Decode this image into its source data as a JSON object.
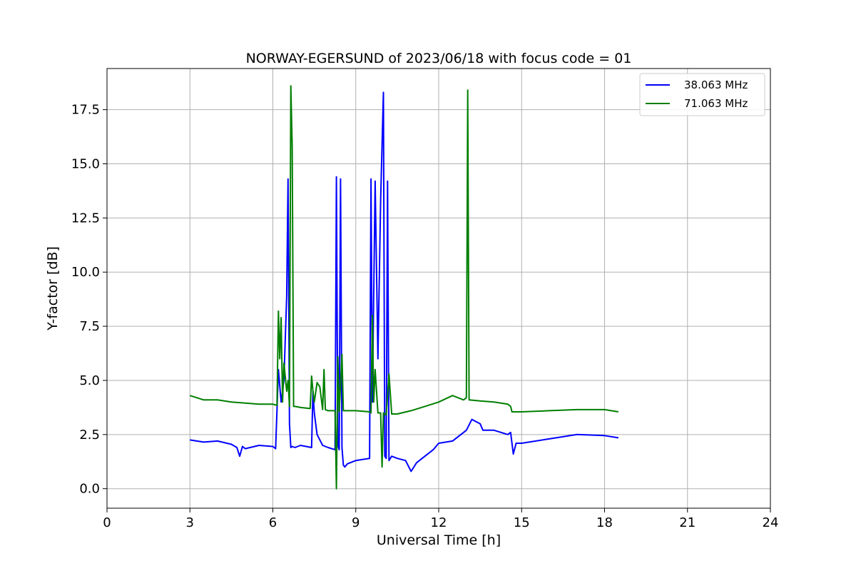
{
  "chart_data": {
    "type": "line",
    "title": "NORWAY-EGERSUND of 2023/06/18 with focus code = 01",
    "xlabel": "Universal Time [h]",
    "ylabel": "Y-factor [dB]",
    "xlim": [
      0,
      24
    ],
    "ylim": [
      -0.9,
      19.4
    ],
    "xticks": [
      0,
      3,
      6,
      9,
      12,
      15,
      18,
      21,
      24
    ],
    "xtick_labels": [
      "0",
      "3",
      "6",
      "9",
      "12",
      "15",
      "18",
      "21",
      "24"
    ],
    "yticks": [
      0,
      2.5,
      5,
      7.5,
      10,
      12.5,
      15,
      17.5
    ],
    "ytick_labels": [
      "0.0",
      "2.5",
      "5.0",
      "7.5",
      "10.0",
      "12.5",
      "15.0",
      "17.5"
    ],
    "grid": true,
    "legend": "top-right",
    "series": [
      {
        "name": "38.063 MHz",
        "color": "#0000ff",
        "x": [
          3.0,
          3.5,
          4.0,
          4.5,
          4.7,
          4.8,
          4.9,
          5.0,
          5.5,
          6.0,
          6.1,
          6.2,
          6.3,
          6.4,
          6.5,
          6.55,
          6.6,
          6.65,
          6.7,
          6.8,
          7.0,
          7.4,
          7.45,
          7.5,
          7.6,
          7.8,
          8.0,
          8.25,
          8.3,
          8.35,
          8.4,
          8.45,
          8.5,
          8.55,
          8.6,
          8.7,
          9.0,
          9.5,
          9.55,
          9.6,
          9.7,
          9.8,
          9.9,
          10.0,
          10.05,
          10.1,
          10.15,
          10.2,
          10.25,
          10.3,
          10.5,
          10.8,
          11.0,
          11.2,
          11.5,
          11.8,
          12.0,
          12.5,
          13.0,
          13.2,
          13.5,
          13.6,
          14.0,
          14.5,
          14.6,
          14.7,
          14.8,
          15.0,
          16.0,
          17.0,
          18.0,
          18.5
        ],
        "y": [
          2.25,
          2.15,
          2.2,
          2.05,
          1.9,
          1.5,
          1.95,
          1.85,
          2.0,
          1.95,
          1.85,
          5.5,
          4.0,
          5.0,
          8.9,
          14.3,
          3.0,
          1.9,
          1.95,
          1.9,
          2.0,
          1.9,
          4.5,
          3.5,
          2.5,
          2.0,
          1.9,
          1.8,
          14.4,
          2.0,
          1.8,
          14.3,
          1.9,
          1.1,
          1.0,
          1.15,
          1.3,
          1.4,
          14.3,
          4.0,
          14.2,
          6.0,
          13.3,
          18.3,
          1.5,
          1.4,
          14.2,
          1.3,
          1.4,
          1.5,
          1.4,
          1.3,
          0.8,
          1.2,
          1.5,
          1.8,
          2.1,
          2.2,
          2.7,
          3.2,
          3.0,
          2.7,
          2.7,
          2.5,
          2.6,
          1.6,
          2.1,
          2.1,
          2.3,
          2.5,
          2.45,
          2.35
        ]
      },
      {
        "name": "71.063 MHz",
        "color": "#007f00",
        "x": [
          3.0,
          3.5,
          4.0,
          4.5,
          5.0,
          5.5,
          6.0,
          6.15,
          6.2,
          6.25,
          6.3,
          6.35,
          6.4,
          6.5,
          6.55,
          6.6,
          6.65,
          6.7,
          6.75,
          6.8,
          7.0,
          7.35,
          7.4,
          7.45,
          7.5,
          7.6,
          7.7,
          7.8,
          7.85,
          7.9,
          8.0,
          8.25,
          8.3,
          8.35,
          8.4,
          8.5,
          8.55,
          8.6,
          9.0,
          9.5,
          9.55,
          9.6,
          9.65,
          9.7,
          9.8,
          9.9,
          9.95,
          10.0,
          10.1,
          10.2,
          10.3,
          10.5,
          11.0,
          11.5,
          12.0,
          12.5,
          12.9,
          13.0,
          13.05,
          13.1,
          13.5,
          14.0,
          14.5,
          14.6,
          14.65,
          15.0,
          16.0,
          17.0,
          18.0,
          18.5
        ],
        "y": [
          4.3,
          4.1,
          4.1,
          4.0,
          3.95,
          3.9,
          3.9,
          3.85,
          8.2,
          6.0,
          7.9,
          4.0,
          5.8,
          4.5,
          5.0,
          3.8,
          18.6,
          15.8,
          3.8,
          3.8,
          3.75,
          3.7,
          5.2,
          4.5,
          4.0,
          4.9,
          4.7,
          3.65,
          5.5,
          3.65,
          3.6,
          3.6,
          0.0,
          6.1,
          3.55,
          6.2,
          3.6,
          3.6,
          3.6,
          3.55,
          3.5,
          8.0,
          4.0,
          5.5,
          3.5,
          3.5,
          1.0,
          3.5,
          3.4,
          5.3,
          3.45,
          3.45,
          3.6,
          3.8,
          4.0,
          4.3,
          4.1,
          4.2,
          18.4,
          4.1,
          4.05,
          4.0,
          3.9,
          3.8,
          3.55,
          3.55,
          3.6,
          3.65,
          3.65,
          3.55
        ]
      }
    ]
  }
}
